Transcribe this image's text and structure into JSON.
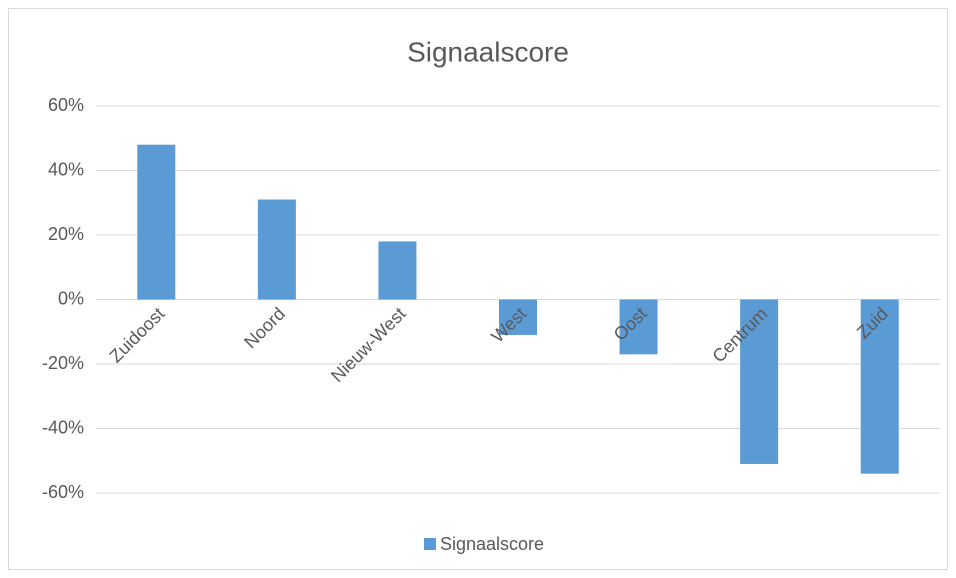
{
  "chart_data": {
    "type": "bar",
    "title": "Signaalscore",
    "categories": [
      "Zuidoost",
      "Noord",
      "Nieuw-West",
      "West",
      "Oost",
      "Centrum",
      "Zuid"
    ],
    "series": [
      {
        "name": "Signaalscore",
        "color": "#5b9bd5",
        "values": [
          48,
          31,
          18,
          -11,
          -17,
          -51,
          -54
        ]
      }
    ],
    "ylim": [
      -60,
      60
    ],
    "yticks": [
      {
        "value": -60,
        "label": "-60%"
      },
      {
        "value": -40,
        "label": "-40%"
      },
      {
        "value": -20,
        "label": "-20%"
      },
      {
        "value": 0,
        "label": "0%"
      },
      {
        "value": 20,
        "label": "20%"
      },
      {
        "value": 40,
        "label": "40%"
      },
      {
        "value": 60,
        "label": "60%"
      }
    ],
    "grid": true,
    "legend": "bottom"
  }
}
